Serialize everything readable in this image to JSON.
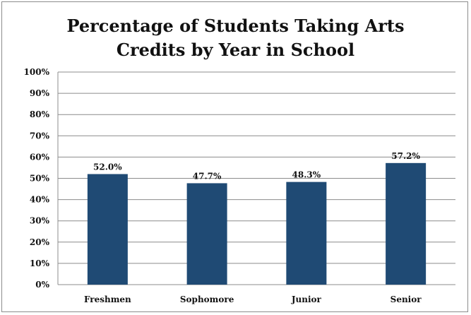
{
  "chart_data": {
    "type": "bar",
    "title_lines": [
      "Percentage of Students Taking Arts",
      "Credits by Year in School"
    ],
    "categories": [
      "Freshmen",
      "Sophomore",
      "Junior",
      "Senior"
    ],
    "values": [
      52.0,
      47.7,
      48.3,
      57.2
    ],
    "data_labels": [
      "52.0%",
      "47.7%",
      "48.3%",
      "57.2%"
    ],
    "y_ticks": [
      "0%",
      "10%",
      "20%",
      "30%",
      "40%",
      "50%",
      "60%",
      "70%",
      "80%",
      "90%",
      "100%"
    ],
    "ylim": [
      0,
      100
    ],
    "grid": true,
    "legend": "none",
    "bar_color": "#1f4a74",
    "grid_color": "#8c8c8c"
  }
}
